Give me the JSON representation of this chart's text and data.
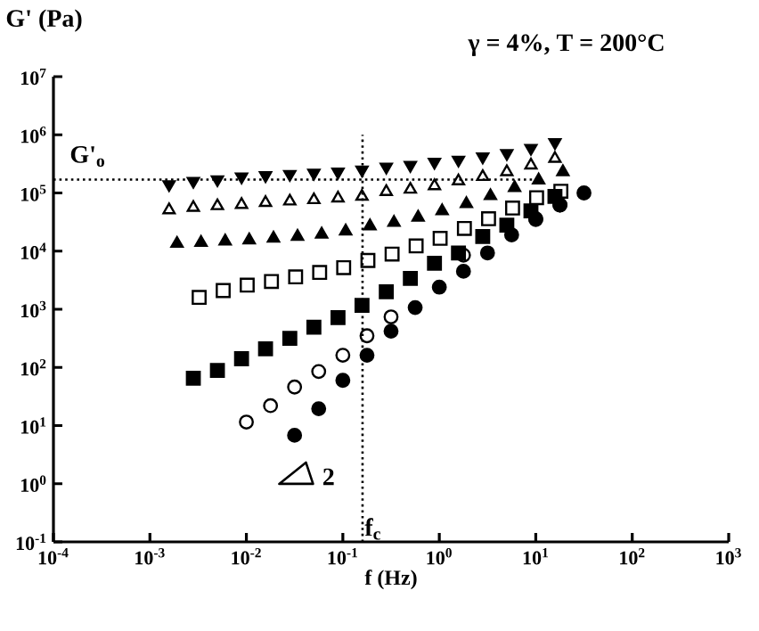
{
  "chart_data": {
    "type": "scatter",
    "xlabel": "f (Hz)",
    "ylabel": "G' (Pa)",
    "log": "xy",
    "grid": false,
    "xlim": [
      0.0001,
      1000
    ],
    "ylim": [
      0.1,
      10000000
    ],
    "xticks": [
      {
        "value": 0.0001,
        "label": "10$^{-4}$"
      },
      {
        "value": 0.001,
        "label": "10$^{-3}$"
      },
      {
        "value": 0.01,
        "label": "10$^{-2}$"
      },
      {
        "value": 0.1,
        "label": "10$^{-1}$"
      },
      {
        "value": 1,
        "label": "10$^{0}$"
      },
      {
        "value": 10,
        "label": "10$^{1}$"
      },
      {
        "value": 100,
        "label": "10$^{2}$"
      },
      {
        "value": 1000,
        "label": "10$^{3}$"
      }
    ],
    "yticks": [
      {
        "value": 0.1,
        "label": "10$^{-1}$"
      },
      {
        "value": 1,
        "label": "10$^{0}$"
      },
      {
        "value": 10,
        "label": "10$^{1}$"
      },
      {
        "value": 100,
        "label": "10$^{2}$"
      },
      {
        "value": 1000,
        "label": "10$^{3}$"
      },
      {
        "value": 10000,
        "label": "10$^{4}$"
      },
      {
        "value": 100000,
        "label": "10$^{5}$"
      },
      {
        "value": 1000000,
        "label": "10$^{6}$"
      },
      {
        "value": 10000000,
        "label": "10$^{7}$"
      }
    ],
    "series": [
      {
        "color": "#000000",
        "marker": "triangle-down",
        "x": [
          0.00158,
          0.00282,
          0.00501,
          0.00891,
          0.0158,
          0.0282,
          0.0501,
          0.0891,
          0.158,
          0.282,
          0.501,
          0.891,
          1.58,
          2.82,
          5.01,
          8.91,
          15.8
        ],
        "values": [
          140000,
          160000,
          170000,
          190000,
          200000,
          210000,
          220000,
          230000,
          250000,
          280000,
          300000,
          340000,
          370000,
          420000,
          480000,
          590000,
          740000
        ]
      },
      {
        "color": "#000000",
        "marker": "triangle-open",
        "x": [
          0.00158,
          0.00282,
          0.00501,
          0.00891,
          0.0158,
          0.0282,
          0.0501,
          0.0891,
          0.158,
          0.282,
          0.501,
          0.891,
          1.58,
          2.82,
          5.01,
          8.91,
          15.8
        ],
        "values": [
          51000,
          56000,
          60000,
          63000,
          68000,
          72000,
          76000,
          81000,
          87000,
          105000,
          115000,
          132000,
          160000,
          190000,
          230000,
          300000,
          390000
        ]
      },
      {
        "color": "#000000",
        "marker": "triangle",
        "x": [
          0.00191,
          0.00339,
          0.00603,
          0.0107,
          0.0191,
          0.0339,
          0.0603,
          0.107,
          0.191,
          0.339,
          0.603,
          1.07,
          1.91,
          3.39,
          6.03,
          10.7,
          19.1
        ],
        "values": [
          13500,
          14000,
          14800,
          15500,
          16600,
          17800,
          19500,
          22000,
          27000,
          31000,
          38000,
          49000,
          65000,
          89000,
          123000,
          166000,
          230000
        ]
      },
      {
        "color": "#000000",
        "marker": "square-open",
        "x": [
          0.00324,
          0.00575,
          0.0102,
          0.0182,
          0.0324,
          0.0575,
          0.102,
          0.182,
          0.324,
          0.575,
          1.02,
          1.82,
          3.24,
          5.75,
          10.2,
          18.2
        ],
        "values": [
          1600,
          2100,
          2600,
          3000,
          3600,
          4300,
          5200,
          6900,
          8900,
          12300,
          16600,
          24500,
          36000,
          55000,
          83000,
          107000
        ]
      },
      {
        "color": "#000000",
        "marker": "square",
        "x": [
          0.00282,
          0.00501,
          0.00891,
          0.0158,
          0.0282,
          0.0501,
          0.0891,
          0.158,
          0.282,
          0.501,
          0.891,
          1.58,
          2.82,
          5.01,
          8.91,
          15.8
        ],
        "values": [
          65,
          89,
          141,
          209,
          316,
          490,
          720,
          1170,
          2000,
          3400,
          6200,
          9300,
          17800,
          28000,
          49000,
          87000
        ]
      },
      {
        "color": "#000000",
        "marker": "circle-open",
        "x": [
          0.01,
          0.0178,
          0.0316,
          0.0562,
          0.1,
          0.178,
          0.316,
          0.562,
          1,
          1.78,
          3.16,
          5.62,
          10,
          17.8
        ],
        "values": [
          11.5,
          22,
          46,
          85,
          162,
          350,
          740,
          null,
          null,
          8500,
          null,
          null,
          36000,
          62000
        ]
      },
      {
        "color": "#000000",
        "marker": "circle",
        "x": [
          0.0316,
          0.0562,
          0.1,
          0.178,
          0.316,
          0.562,
          1,
          1.78,
          3.16,
          5.62,
          10,
          17.8,
          31.6
        ],
        "values": [
          6.8,
          19.5,
          60,
          162,
          420,
          1070,
          2400,
          4500,
          9300,
          19000,
          35000,
          62000,
          100000
        ]
      }
    ],
    "ref_lines": [
      {
        "axis": "x",
        "value": 0.16,
        "label": "f$_{c}$",
        "line_style": "dotted"
      },
      {
        "axis": "y",
        "value": 170000,
        "label": "G'$_{o}$",
        "line_style": "dotted"
      }
    ],
    "annotations": [
      "γ = 4%, T = 200°C",
      "2"
    ]
  }
}
